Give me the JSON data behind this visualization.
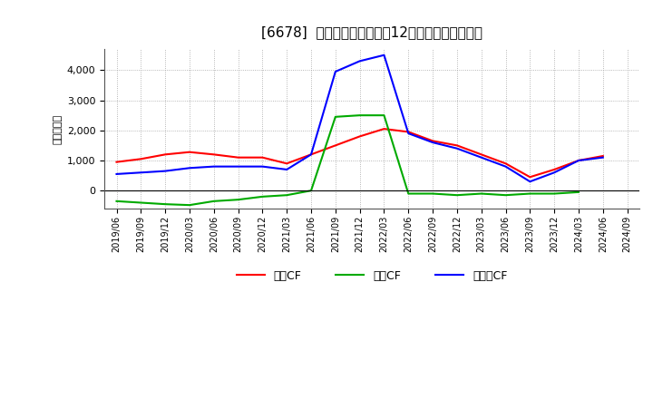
{
  "title": "[6678]  キャッシュフローの12か月移動合計の推移",
  "ylabel": "（百万円）",
  "background_color": "#ffffff",
  "plot_bg_color": "#ffffff",
  "grid_color": "#aaaaaa",
  "x_labels": [
    "2019/06",
    "2019/09",
    "2019/12",
    "2020/03",
    "2020/06",
    "2020/09",
    "2020/12",
    "2021/03",
    "2021/06",
    "2021/09",
    "2021/12",
    "2022/03",
    "2022/06",
    "2022/09",
    "2022/12",
    "2023/03",
    "2023/06",
    "2023/09",
    "2023/12",
    "2024/03",
    "2024/06",
    "2024/09"
  ],
  "operating_cf": [
    950,
    1050,
    1200,
    1280,
    1200,
    1100,
    1100,
    900,
    1200,
    1500,
    1800,
    2050,
    1950,
    1650,
    1500,
    1200,
    900,
    450,
    700,
    1000,
    1150,
    null
  ],
  "investing_cf": [
    -350,
    -400,
    -450,
    -480,
    -350,
    -300,
    -200,
    -150,
    0,
    2450,
    2500,
    2500,
    -100,
    -100,
    -150,
    -100,
    -150,
    -100,
    -100,
    -50,
    null,
    null
  ],
  "free_cf": [
    550,
    600,
    650,
    750,
    800,
    800,
    800,
    700,
    1200,
    3950,
    4300,
    4500,
    1900,
    1600,
    1400,
    1100,
    800,
    300,
    600,
    1000,
    1100,
    null
  ],
  "operating_color": "#ff0000",
  "investing_color": "#00aa00",
  "free_color": "#0000ff",
  "ylim_min": -600,
  "ylim_max": 4700,
  "yticks": [
    0,
    1000,
    2000,
    3000,
    4000
  ],
  "legend_labels": [
    "営業CF",
    "投資CF",
    "フリーCF"
  ]
}
